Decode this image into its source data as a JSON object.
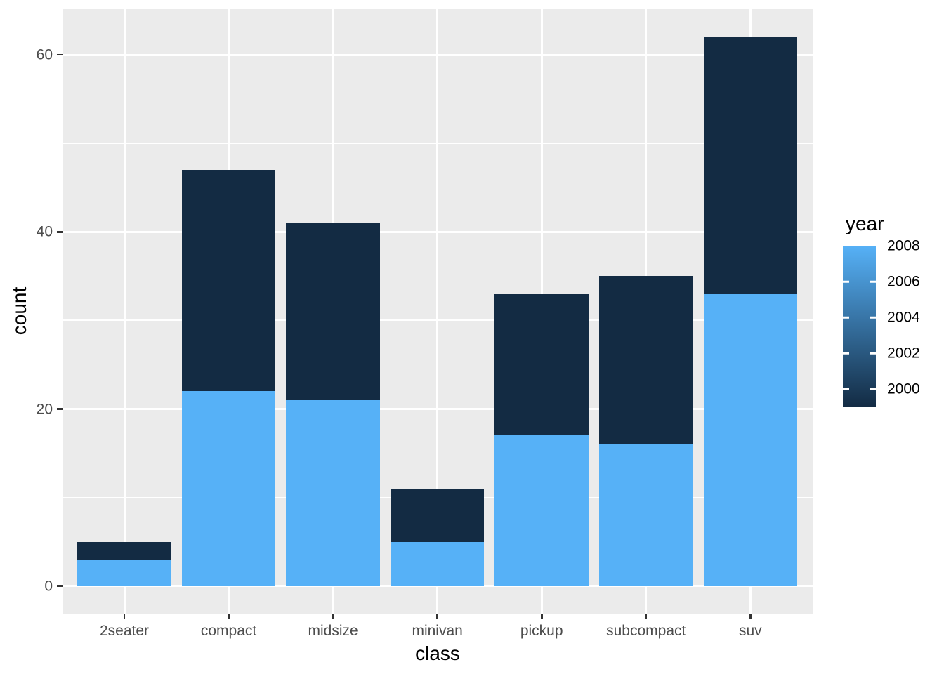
{
  "figure": {
    "background": "#FFFFFF",
    "panel_background": "#EBEBEB",
    "grid_color": "#FFFFFF",
    "tick_color": "#333333",
    "axis_text_color": "#4D4D4D",
    "title_color": "#000000"
  },
  "chart_data": {
    "type": "bar",
    "stacked": true,
    "title": "",
    "xlabel": "class",
    "ylabel": "count",
    "categories": [
      "2seater",
      "compact",
      "midsize",
      "minivan",
      "pickup",
      "subcompact",
      "suv"
    ],
    "series": [
      {
        "name": "2008",
        "year": 2008,
        "color": "#56B1F7",
        "values": [
          3,
          22,
          21,
          5,
          17,
          16,
          33
        ]
      },
      {
        "name": "1999",
        "year": 1999,
        "color": "#132B43",
        "values": [
          2,
          25,
          20,
          6,
          16,
          19,
          29
        ]
      }
    ],
    "stack_totals": [
      5,
      47,
      41,
      11,
      33,
      35,
      62
    ],
    "y_major_ticks": [
      "0",
      "20",
      "40",
      "60"
    ],
    "y_major_values": [
      0,
      20,
      40,
      60
    ],
    "y_minor_values": [
      10,
      30,
      50
    ],
    "ylim": [
      -3.1,
      65.1
    ],
    "grid": true,
    "legend": {
      "title": "year",
      "type": "colorbar",
      "position": "right",
      "domain": [
        1999,
        2008
      ],
      "gradient_high_color": "#56B1F7",
      "gradient_low_color": "#132B43",
      "tick_labels": [
        "2008",
        "2006",
        "2004",
        "2002",
        "2000"
      ],
      "tick_years": [
        2008,
        2006,
        2004,
        2002,
        2000
      ],
      "side_tick_years": [
        2006,
        2004,
        2002,
        2000
      ]
    }
  }
}
